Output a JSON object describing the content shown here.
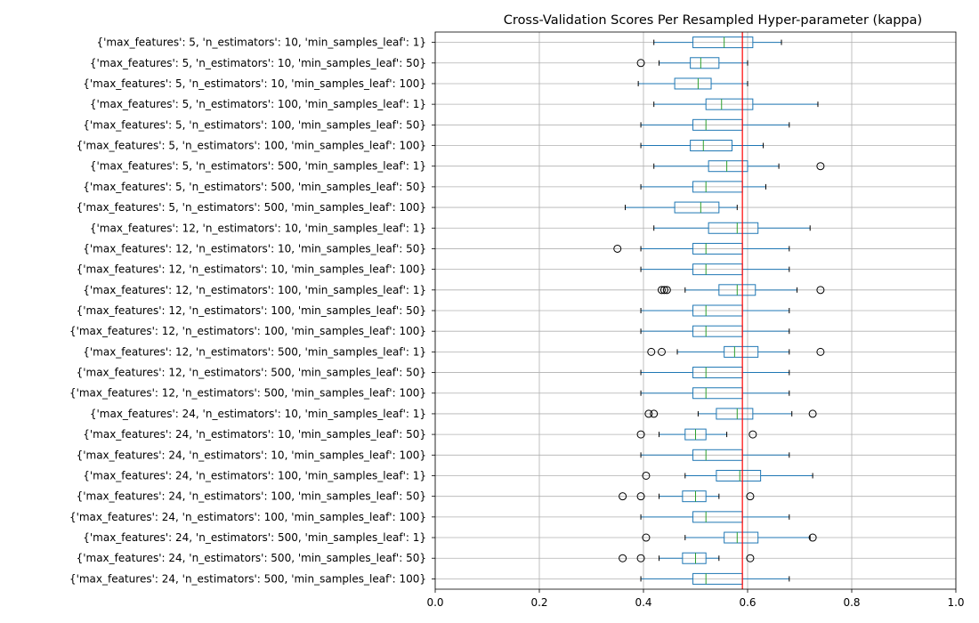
{
  "chart_data": {
    "type": "boxplot",
    "orientation": "horizontal",
    "title": "Cross-Validation Scores Per Resampled Hyper-parameter (kappa)",
    "xlabel": "",
    "ylabel": "",
    "xlim": [
      0.0,
      1.0
    ],
    "xticks": [
      "0.0",
      "0.2",
      "0.4",
      "0.6",
      "0.8",
      "1.0"
    ],
    "grid": true,
    "reference_line": {
      "value": 0.59,
      "color": "#ff0000"
    },
    "box_color": "#1f77b4",
    "median_color": "#2ca02c",
    "highlight_color": "#ff0000",
    "categories": [
      "{'max_features': 5, 'n_estimators': 10, 'min_samples_leaf': 1}",
      "{'max_features': 5, 'n_estimators': 10, 'min_samples_leaf': 50}",
      "{'max_features': 5, 'n_estimators': 10, 'min_samples_leaf': 100}",
      "{'max_features': 5, 'n_estimators': 100, 'min_samples_leaf': 1}",
      "{'max_features': 5, 'n_estimators': 100, 'min_samples_leaf': 50}",
      "{'max_features': 5, 'n_estimators': 100, 'min_samples_leaf': 100}",
      "{'max_features': 5, 'n_estimators': 500, 'min_samples_leaf': 1}",
      "{'max_features': 5, 'n_estimators': 500, 'min_samples_leaf': 50}",
      "{'max_features': 5, 'n_estimators': 500, 'min_samples_leaf': 100}",
      "{'max_features': 12, 'n_estimators': 10, 'min_samples_leaf': 1}",
      "{'max_features': 12, 'n_estimators': 10, 'min_samples_leaf': 50}",
      "{'max_features': 12, 'n_estimators': 10, 'min_samples_leaf': 100}",
      "{'max_features': 12, 'n_estimators': 100, 'min_samples_leaf': 1}",
      "{'max_features': 12, 'n_estimators': 100, 'min_samples_leaf': 50}",
      "{'max_features': 12, 'n_estimators': 100, 'min_samples_leaf': 100}",
      "{'max_features': 12, 'n_estimators': 500, 'min_samples_leaf': 1}",
      "{'max_features': 12, 'n_estimators': 500, 'min_samples_leaf': 50}",
      "{'max_features': 12, 'n_estimators': 500, 'min_samples_leaf': 100}",
      "{'max_features': 24, 'n_estimators': 10, 'min_samples_leaf': 1}",
      "{'max_features': 24, 'n_estimators': 10, 'min_samples_leaf': 50}",
      "{'max_features': 24, 'n_estimators': 10, 'min_samples_leaf': 100}",
      "{'max_features': 24, 'n_estimators': 100, 'min_samples_leaf': 1}",
      "{'max_features': 24, 'n_estimators': 100, 'min_samples_leaf': 50}",
      "{'max_features': 24, 'n_estimators': 100, 'min_samples_leaf': 100}",
      "{'max_features': 24, 'n_estimators': 500, 'min_samples_leaf': 1}",
      "{'max_features': 24, 'n_estimators': 500, 'min_samples_leaf': 50}",
      "{'max_features': 24, 'n_estimators': 500, 'min_samples_leaf': 100}"
    ],
    "highlighted_category": 24,
    "boxes": [
      {
        "whisker_low": 0.42,
        "q1": 0.495,
        "median": 0.555,
        "q3": 0.61,
        "whisker_high": 0.665,
        "fliers": []
      },
      {
        "whisker_low": 0.43,
        "q1": 0.49,
        "median": 0.51,
        "q3": 0.545,
        "whisker_high": 0.6,
        "fliers": [
          0.395
        ]
      },
      {
        "whisker_low": 0.39,
        "q1": 0.46,
        "median": 0.505,
        "q3": 0.53,
        "whisker_high": 0.6,
        "fliers": []
      },
      {
        "whisker_low": 0.42,
        "q1": 0.52,
        "median": 0.55,
        "q3": 0.61,
        "whisker_high": 0.735,
        "fliers": []
      },
      {
        "whisker_low": 0.395,
        "q1": 0.495,
        "median": 0.52,
        "q3": 0.59,
        "whisker_high": 0.68,
        "fliers": []
      },
      {
        "whisker_low": 0.395,
        "q1": 0.49,
        "median": 0.515,
        "q3": 0.57,
        "whisker_high": 0.63,
        "fliers": []
      },
      {
        "whisker_low": 0.42,
        "q1": 0.525,
        "median": 0.56,
        "q3": 0.6,
        "whisker_high": 0.66,
        "fliers": [
          0.74
        ]
      },
      {
        "whisker_low": 0.395,
        "q1": 0.495,
        "median": 0.52,
        "q3": 0.59,
        "whisker_high": 0.635,
        "fliers": []
      },
      {
        "whisker_low": 0.365,
        "q1": 0.46,
        "median": 0.51,
        "q3": 0.545,
        "whisker_high": 0.58,
        "fliers": []
      },
      {
        "whisker_low": 0.42,
        "q1": 0.525,
        "median": 0.58,
        "q3": 0.62,
        "whisker_high": 0.72,
        "fliers": []
      },
      {
        "whisker_low": 0.395,
        "q1": 0.495,
        "median": 0.52,
        "q3": 0.59,
        "whisker_high": 0.68,
        "fliers": [
          0.35
        ]
      },
      {
        "whisker_low": 0.395,
        "q1": 0.495,
        "median": 0.52,
        "q3": 0.59,
        "whisker_high": 0.68,
        "fliers": []
      },
      {
        "whisker_low": 0.48,
        "q1": 0.545,
        "median": 0.58,
        "q3": 0.615,
        "whisker_high": 0.695,
        "fliers": [
          0.435,
          0.44,
          0.445,
          0.74
        ]
      },
      {
        "whisker_low": 0.395,
        "q1": 0.495,
        "median": 0.52,
        "q3": 0.59,
        "whisker_high": 0.68,
        "fliers": []
      },
      {
        "whisker_low": 0.395,
        "q1": 0.495,
        "median": 0.52,
        "q3": 0.59,
        "whisker_high": 0.68,
        "fliers": []
      },
      {
        "whisker_low": 0.465,
        "q1": 0.555,
        "median": 0.575,
        "q3": 0.62,
        "whisker_high": 0.68,
        "fliers": [
          0.415,
          0.435,
          0.74
        ]
      },
      {
        "whisker_low": 0.395,
        "q1": 0.495,
        "median": 0.52,
        "q3": 0.59,
        "whisker_high": 0.68,
        "fliers": []
      },
      {
        "whisker_low": 0.395,
        "q1": 0.495,
        "median": 0.52,
        "q3": 0.59,
        "whisker_high": 0.68,
        "fliers": []
      },
      {
        "whisker_low": 0.505,
        "q1": 0.54,
        "median": 0.58,
        "q3": 0.61,
        "whisker_high": 0.685,
        "fliers": [
          0.41,
          0.42,
          0.725
        ]
      },
      {
        "whisker_low": 0.43,
        "q1": 0.48,
        "median": 0.5,
        "q3": 0.52,
        "whisker_high": 0.56,
        "fliers": [
          0.395,
          0.61
        ]
      },
      {
        "whisker_low": 0.395,
        "q1": 0.495,
        "median": 0.52,
        "q3": 0.59,
        "whisker_high": 0.68,
        "fliers": []
      },
      {
        "whisker_low": 0.48,
        "q1": 0.54,
        "median": 0.585,
        "q3": 0.625,
        "whisker_high": 0.725,
        "fliers": [
          0.405
        ]
      },
      {
        "whisker_low": 0.43,
        "q1": 0.475,
        "median": 0.5,
        "q3": 0.52,
        "whisker_high": 0.545,
        "fliers": [
          0.36,
          0.395,
          0.605
        ]
      },
      {
        "whisker_low": 0.395,
        "q1": 0.495,
        "median": 0.52,
        "q3": 0.59,
        "whisker_high": 0.68,
        "fliers": []
      },
      {
        "whisker_low": 0.48,
        "q1": 0.555,
        "median": 0.58,
        "q3": 0.62,
        "whisker_high": 0.72,
        "fliers": [
          0.405,
          0.725
        ]
      },
      {
        "whisker_low": 0.43,
        "q1": 0.475,
        "median": 0.5,
        "q3": 0.52,
        "whisker_high": 0.545,
        "fliers": [
          0.36,
          0.395,
          0.605
        ]
      },
      {
        "whisker_low": 0.395,
        "q1": 0.495,
        "median": 0.52,
        "q3": 0.59,
        "whisker_high": 0.68,
        "fliers": []
      }
    ]
  }
}
